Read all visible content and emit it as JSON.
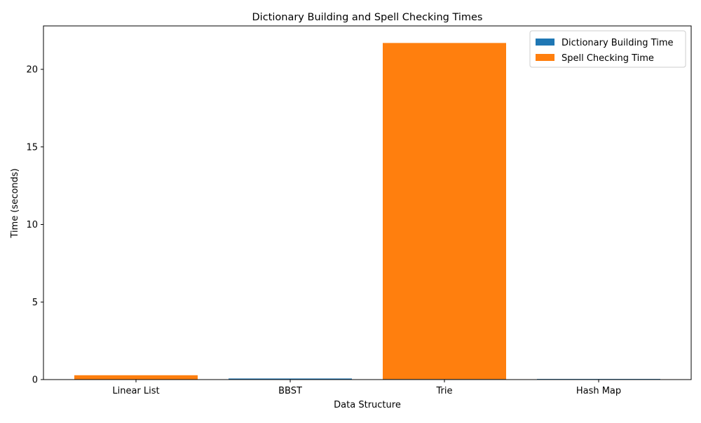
{
  "chart_data": {
    "type": "bar",
    "title": "Dictionary Building and Spell Checking Times",
    "xlabel": "Data Structure",
    "ylabel": "Time (seconds)",
    "categories": [
      "Linear List",
      "BBST",
      "Trie",
      "Hash Map"
    ],
    "series": [
      {
        "name": "Dictionary Building Time",
        "color": "#1f77b4",
        "values": [
          0.02,
          0.07,
          0.03,
          0.04
        ]
      },
      {
        "name": "Spell Checking Time",
        "color": "#ff7f0e",
        "values": [
          0.28,
          0.02,
          21.7,
          0.01
        ]
      }
    ],
    "ylim": [
      0,
      22.8
    ],
    "yticks": [
      0,
      5,
      10,
      15,
      20
    ],
    "grid": false,
    "legend_position": "top-right"
  }
}
